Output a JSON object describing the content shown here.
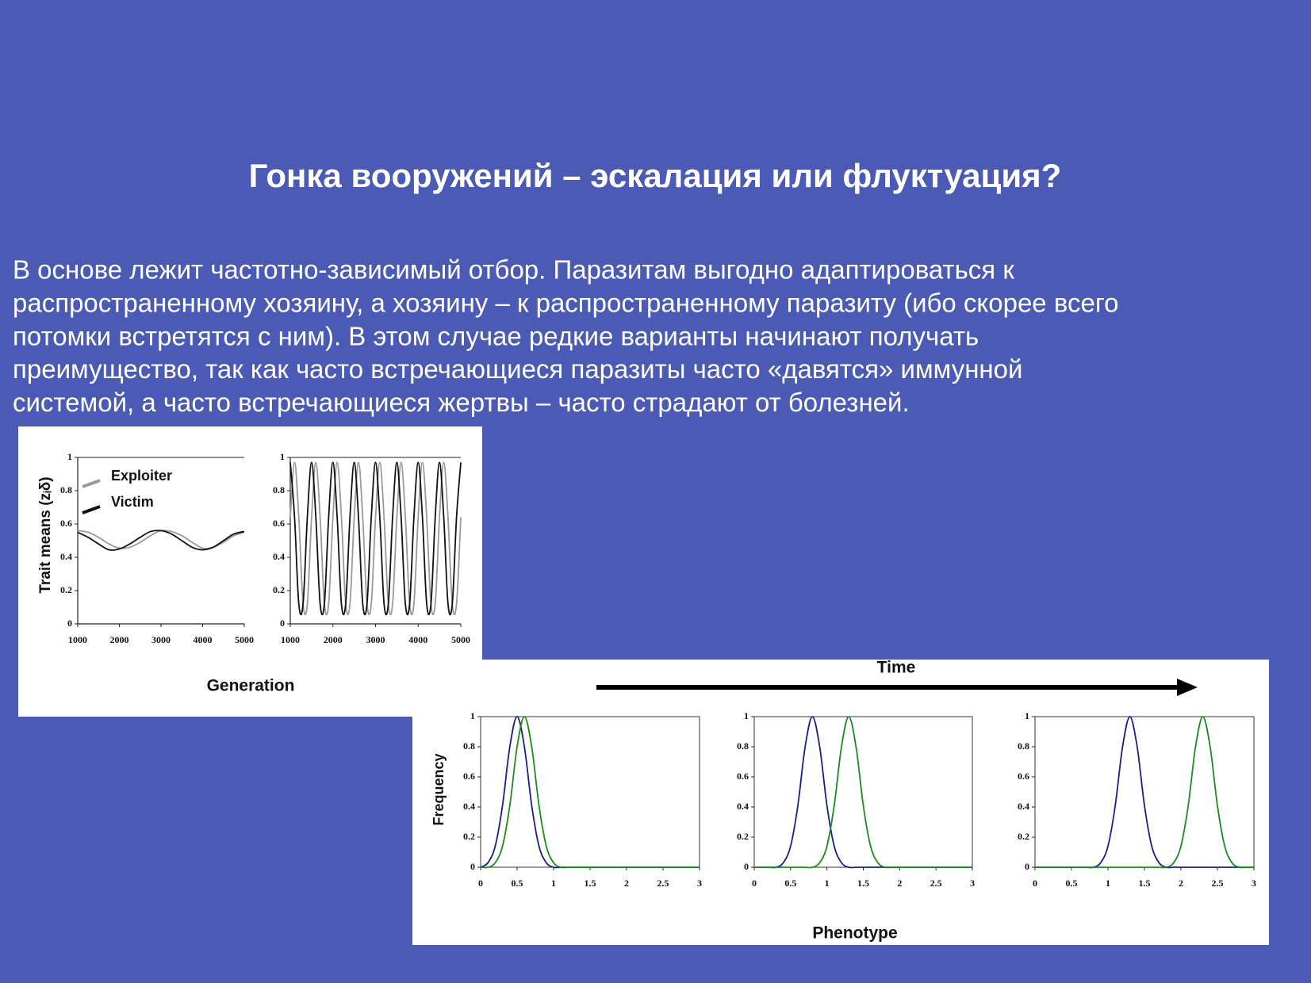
{
  "title": "Гонка вооружений – эскалация или флуктуация?",
  "body": [
    "В основе лежит частотно-зависимый отбор. Паразитам выгодно адаптироваться к",
    "распространенному хозяину, а хозяину – к распространенному паразиту (ибо скорее всего",
    "потомки встретятся с ним). В этом случае редкие варианты начинают получать",
    "преимущество, так как часто встречающиеся паразиты часто «давятся» иммунной",
    "системой, а часто встречающиеся жертвы – часто страдают от болезней."
  ],
  "figures": [
    {
      "xlabel": "Generation",
      "ylabel": "Trait means (zᵢδ)"
    },
    {
      "annotation": "Time",
      "xlabel": "Phenotype",
      "ylabel": "Frequency"
    }
  ],
  "chart_data": [
    {
      "type": "line",
      "legend": "upper left",
      "frame": false,
      "x": [
        1000,
        1250,
        1500,
        1750,
        2000,
        2250,
        2500,
        2750,
        3000,
        3250,
        3500,
        3750,
        4000,
        4250,
        4500,
        4750,
        5000
      ],
      "series": [
        {
          "name": "Exploiter",
          "color": "#9a9a9a",
          "values": [
            0.56,
            0.55,
            0.52,
            0.48,
            0.455,
            0.46,
            0.49,
            0.53,
            0.56,
            0.555,
            0.53,
            0.49,
            0.455,
            0.46,
            0.49,
            0.53,
            0.55
          ]
        },
        {
          "name": "Victim",
          "color": "#111111",
          "values": [
            0.55,
            0.52,
            0.48,
            0.445,
            0.45,
            0.48,
            0.52,
            0.555,
            0.56,
            0.54,
            0.5,
            0.46,
            0.445,
            0.46,
            0.5,
            0.54,
            0.555
          ]
        }
      ],
      "xlim": [
        1000,
        5000
      ],
      "xticks": [
        1000,
        2000,
        3000,
        4000,
        5000
      ],
      "ylim": [
        0,
        1
      ],
      "yticks": [
        0,
        0.2,
        0.4,
        0.6,
        0.8,
        1
      ]
    },
    {
      "type": "line",
      "frame": false,
      "x": [
        1000,
        1100,
        1200,
        1300,
        1400,
        1500,
        1600,
        1700,
        1800,
        1900,
        2000,
        2100,
        2200,
        2300,
        2400,
        2500,
        2600,
        2700,
        2800,
        2900,
        3000,
        3100,
        3200,
        3300,
        3400,
        3500,
        3600,
        3700,
        3800,
        3900,
        4000,
        4100,
        4200,
        4300,
        4400,
        4500,
        4600,
        4700,
        4800,
        4900,
        5000
      ],
      "series": [
        {
          "color": "#9a9a9a",
          "values": [
            0.64,
            0.97,
            0.64,
            0.12,
            0.12,
            0.64,
            0.97,
            0.64,
            0.12,
            0.12,
            0.64,
            0.97,
            0.64,
            0.12,
            0.12,
            0.64,
            0.97,
            0.64,
            0.12,
            0.12,
            0.64,
            0.97,
            0.64,
            0.12,
            0.12,
            0.64,
            0.97,
            0.64,
            0.12,
            0.12,
            0.64,
            0.97,
            0.64,
            0.12,
            0.12,
            0.64,
            0.97,
            0.64,
            0.12,
            0.12,
            0.64
          ]
        },
        {
          "color": "#111111",
          "values": [
            0.97,
            0.64,
            0.12,
            0.12,
            0.64,
            0.97,
            0.64,
            0.12,
            0.12,
            0.64,
            0.97,
            0.64,
            0.12,
            0.12,
            0.64,
            0.97,
            0.64,
            0.12,
            0.12,
            0.64,
            0.97,
            0.64,
            0.12,
            0.12,
            0.64,
            0.97,
            0.64,
            0.12,
            0.12,
            0.64,
            0.97,
            0.64,
            0.12,
            0.12,
            0.64,
            0.97,
            0.64,
            0.12,
            0.12,
            0.64,
            0.97
          ]
        }
      ],
      "xlim": [
        1000,
        5000
      ],
      "xticks": [
        1000,
        2000,
        3000,
        4000,
        5000
      ],
      "ylim": [
        0,
        1
      ],
      "yticks": [
        0,
        0.2,
        0.4,
        0.6,
        0.8,
        1
      ]
    },
    {
      "type": "line",
      "frame": true,
      "x": [
        0,
        0.1,
        0.2,
        0.3,
        0.4,
        0.5,
        0.6,
        0.7,
        0.8,
        0.9,
        1,
        1.1,
        1.2,
        1.3,
        1.4,
        1.5,
        1.6,
        1.7,
        1.8,
        1.9,
        2,
        2.1,
        2.2,
        2.3,
        2.4,
        2.5,
        2.6,
        2.7,
        2.8,
        2.9,
        3
      ],
      "series": [
        {
          "color": "#1c1c8c",
          "values": [
            0,
            0.03,
            0.14,
            0.41,
            0.8,
            1,
            0.8,
            0.41,
            0.14,
            0.03,
            0,
            0,
            0,
            0,
            0,
            0,
            0,
            0,
            0,
            0,
            0,
            0,
            0,
            0,
            0,
            0,
            0,
            0,
            0,
            0,
            0
          ]
        },
        {
          "color": "#1a8c1a",
          "values": [
            0,
            0,
            0.03,
            0.14,
            0.41,
            0.8,
            1,
            0.8,
            0.41,
            0.14,
            0.03,
            0,
            0,
            0,
            0,
            0,
            0,
            0,
            0,
            0,
            0,
            0,
            0,
            0,
            0,
            0,
            0,
            0,
            0,
            0,
            0
          ]
        }
      ],
      "xlim": [
        0,
        3
      ],
      "xticks": [
        0,
        0.5,
        1,
        1.5,
        2,
        2.5,
        3
      ],
      "ylim": [
        0,
        1
      ],
      "yticks": [
        0,
        0.2,
        0.4,
        0.6,
        0.8,
        1
      ]
    },
    {
      "type": "line",
      "frame": true,
      "x": [
        0,
        0.1,
        0.2,
        0.3,
        0.4,
        0.5,
        0.6,
        0.7,
        0.8,
        0.9,
        1,
        1.1,
        1.2,
        1.3,
        1.4,
        1.5,
        1.6,
        1.7,
        1.8,
        1.9,
        2,
        2.1,
        2.2,
        2.3,
        2.4,
        2.5,
        2.6,
        2.7,
        2.8,
        2.9,
        3
      ],
      "series": [
        {
          "color": "#1c1c8c",
          "values": [
            0,
            0,
            0,
            0,
            0.03,
            0.14,
            0.41,
            0.8,
            1,
            0.8,
            0.41,
            0.14,
            0.03,
            0,
            0,
            0,
            0,
            0,
            0,
            0,
            0,
            0,
            0,
            0,
            0,
            0,
            0,
            0,
            0,
            0,
            0
          ]
        },
        {
          "color": "#1a8c1a",
          "values": [
            0,
            0,
            0,
            0,
            0,
            0,
            0,
            0,
            0,
            0.03,
            0.14,
            0.41,
            0.8,
            1,
            0.8,
            0.41,
            0.14,
            0.03,
            0,
            0,
            0,
            0,
            0,
            0,
            0,
            0,
            0,
            0,
            0,
            0,
            0
          ]
        }
      ],
      "xlim": [
        0,
        3
      ],
      "xticks": [
        0,
        0.5,
        1,
        1.5,
        2,
        2.5,
        3
      ],
      "ylim": [
        0,
        1
      ],
      "yticks": [
        0,
        0.2,
        0.4,
        0.6,
        0.8,
        1
      ]
    },
    {
      "type": "line",
      "frame": true,
      "x": [
        0,
        0.1,
        0.2,
        0.3,
        0.4,
        0.5,
        0.6,
        0.7,
        0.8,
        0.9,
        1,
        1.1,
        1.2,
        1.3,
        1.4,
        1.5,
        1.6,
        1.7,
        1.8,
        1.9,
        2,
        2.1,
        2.2,
        2.3,
        2.4,
        2.5,
        2.6,
        2.7,
        2.8,
        2.9,
        3
      ],
      "series": [
        {
          "color": "#1c1c8c",
          "values": [
            0,
            0,
            0,
            0,
            0,
            0,
            0,
            0,
            0,
            0.03,
            0.14,
            0.41,
            0.8,
            1,
            0.8,
            0.41,
            0.14,
            0.03,
            0,
            0,
            0,
            0,
            0,
            0,
            0,
            0,
            0,
            0,
            0,
            0,
            0
          ]
        },
        {
          "color": "#1a8c1a",
          "values": [
            0,
            0,
            0,
            0,
            0,
            0,
            0,
            0,
            0,
            0,
            0,
            0,
            0,
            0,
            0,
            0,
            0,
            0,
            0,
            0.03,
            0.14,
            0.41,
            0.8,
            1,
            0.8,
            0.41,
            0.14,
            0.03,
            0,
            0,
            0
          ]
        }
      ],
      "xlim": [
        0,
        3
      ],
      "xticks": [
        0,
        0.5,
        1,
        1.5,
        2,
        2.5,
        3
      ],
      "ylim": [
        0,
        1
      ],
      "yticks": [
        0,
        0.2,
        0.4,
        0.6,
        0.8,
        1
      ]
    }
  ]
}
